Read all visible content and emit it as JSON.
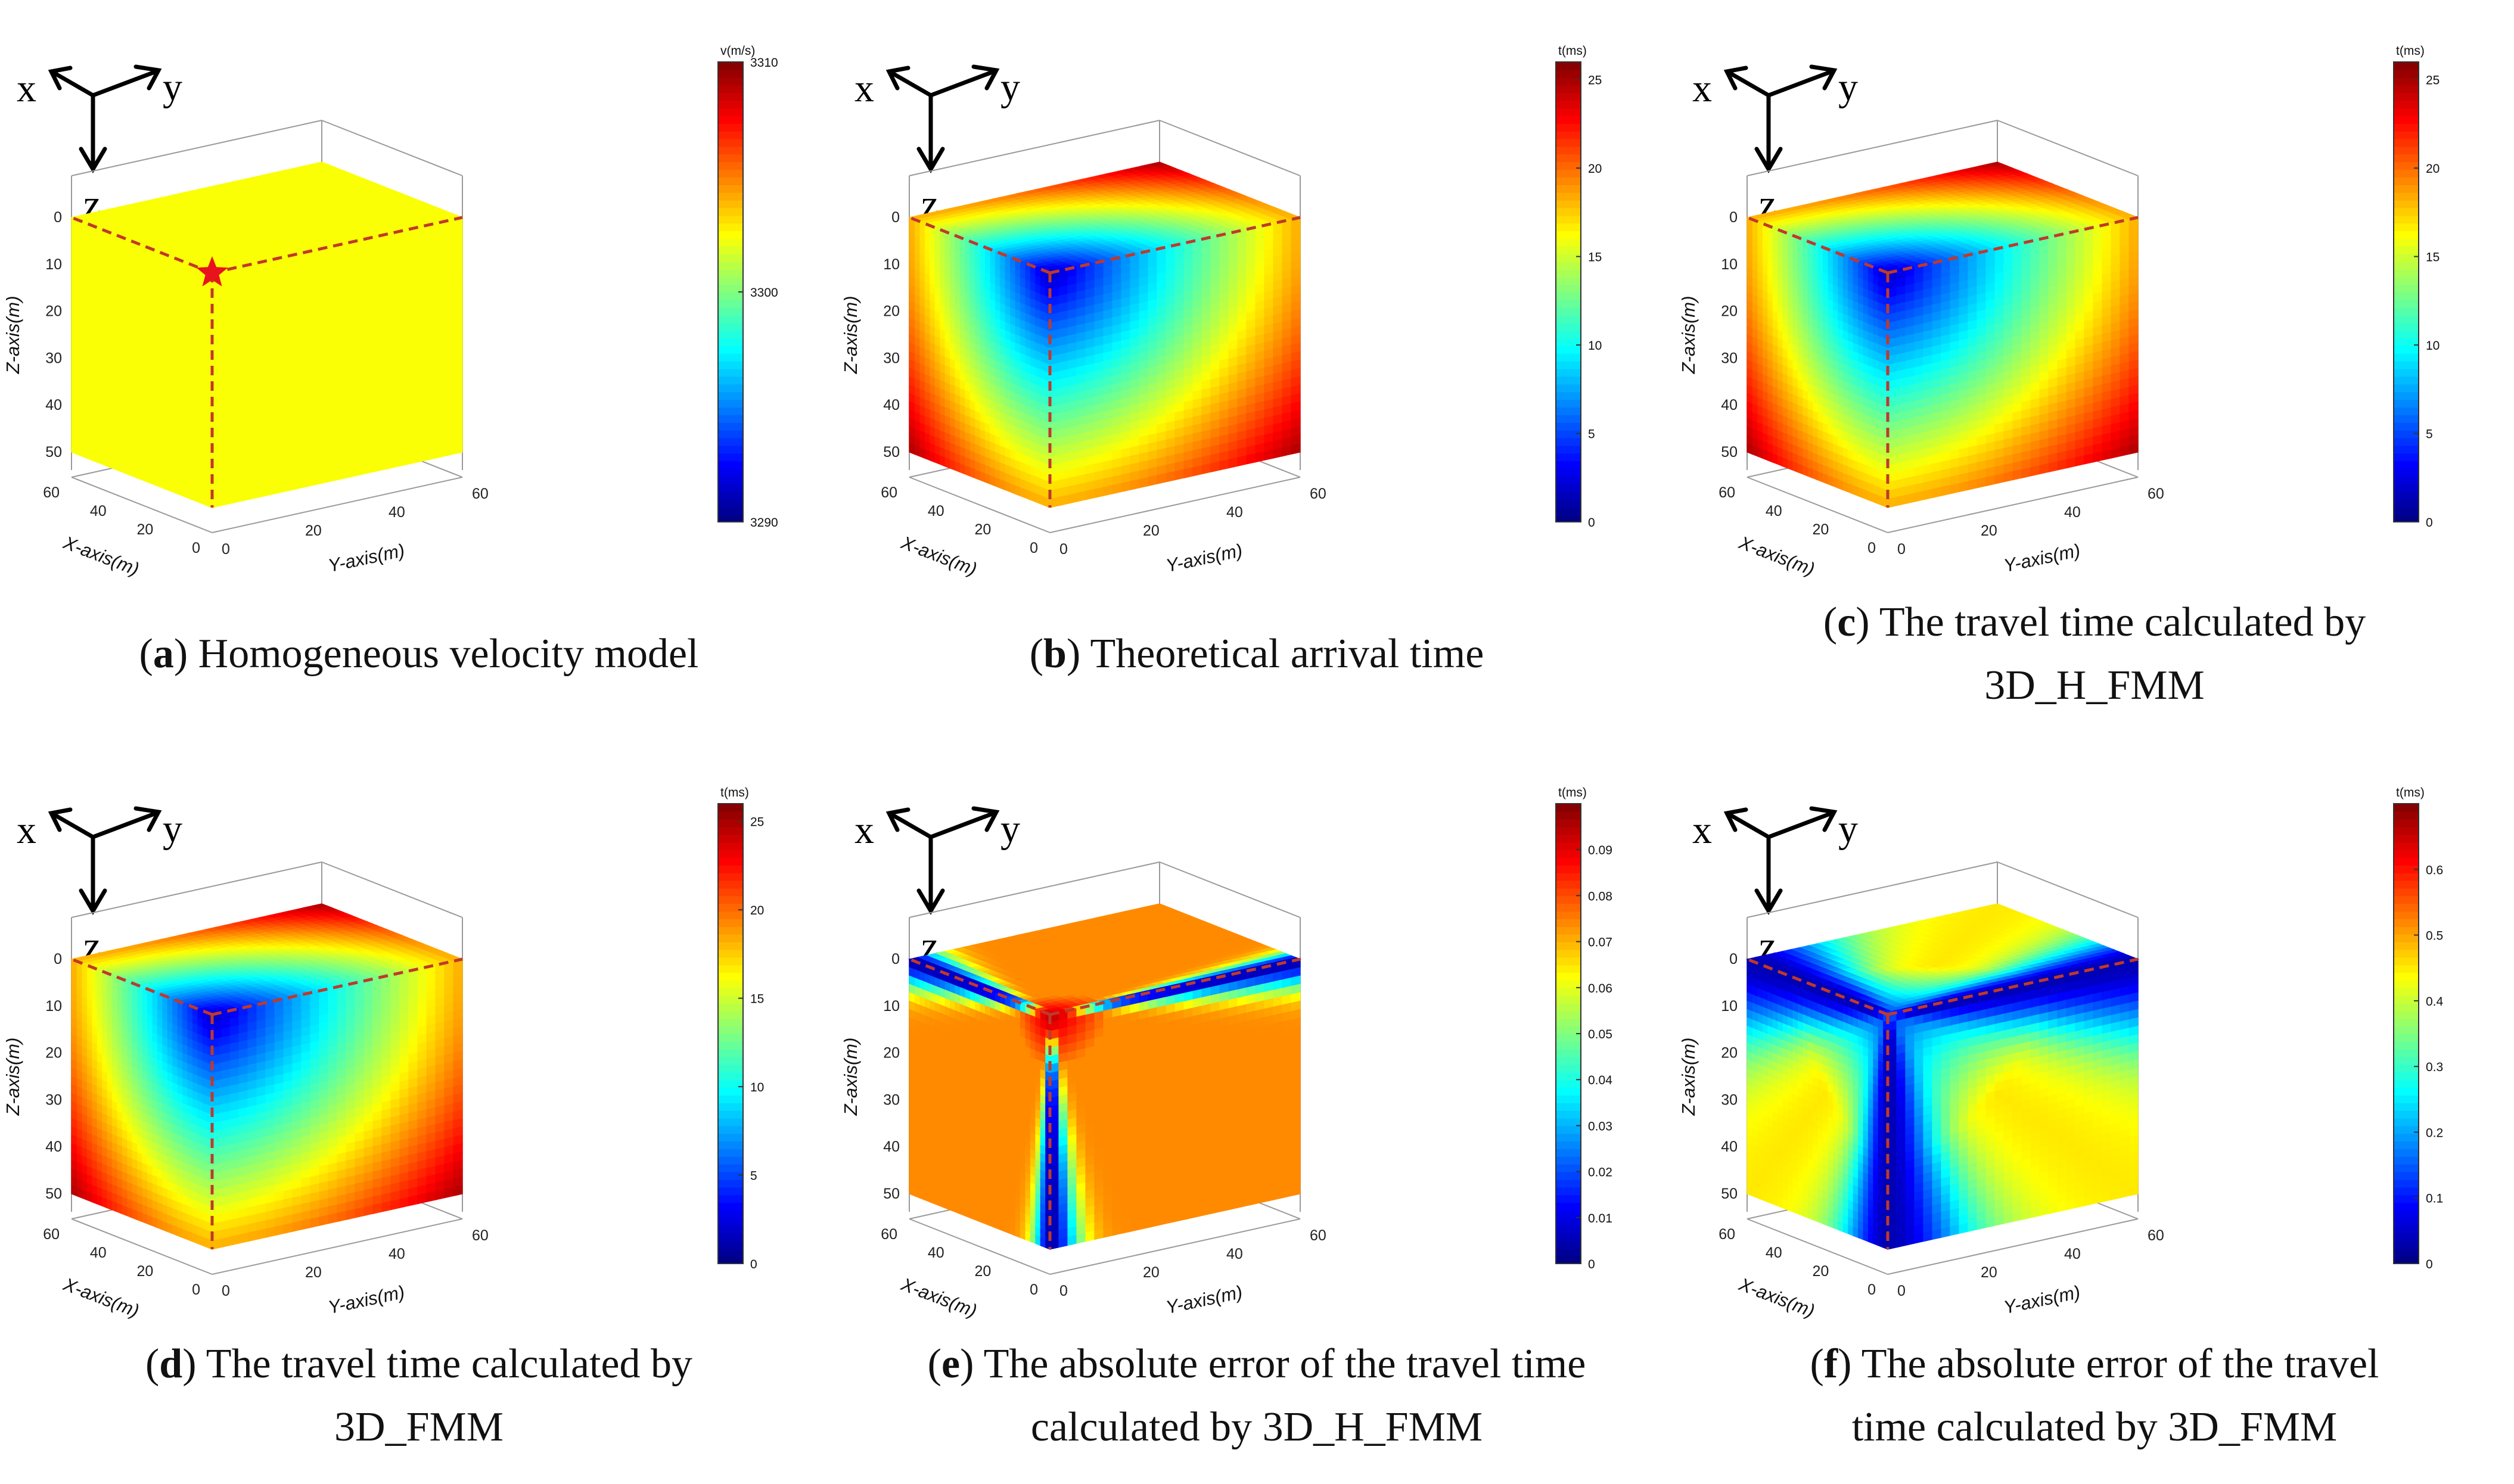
{
  "figure": {
    "orientation": {
      "x": "x",
      "y": "y",
      "z": "z"
    }
  },
  "chart_data": [
    {
      "type": "heatmap",
      "id": "a",
      "caption_letter": "a",
      "caption_lines": [
        "Homogeneous velocity model"
      ],
      "field": "uniform",
      "source_marker": true,
      "xlabel": "X-axis(m)",
      "ylabel": "Y-axis(m)",
      "zlabel": "Z-axis(m)",
      "x_ticks": [
        0,
        20,
        40,
        60
      ],
      "y_ticks": [
        0,
        20,
        40,
        60
      ],
      "z_ticks": [
        0,
        10,
        20,
        30,
        40,
        50
      ],
      "colorbar": {
        "title": "v(m/s)",
        "range": [
          3290,
          3310
        ],
        "ticks": [
          "3290",
          "3300",
          "3310"
        ]
      }
    },
    {
      "type": "heatmap",
      "id": "b",
      "caption_letter": "b",
      "caption_lines": [
        "Theoretical arrival time"
      ],
      "field": "travel-time",
      "xlabel": "X-axis(m)",
      "ylabel": "Y-axis(m)",
      "zlabel": "Z-axis(m)",
      "x_ticks": [
        0,
        20,
        40,
        60
      ],
      "y_ticks": [
        0,
        20,
        40,
        60
      ],
      "z_ticks": [
        0,
        10,
        20,
        30,
        40,
        50
      ],
      "colorbar": {
        "title": "t(ms)",
        "range": [
          0,
          26
        ],
        "ticks": [
          "0",
          "5",
          "10",
          "15",
          "20",
          "25"
        ]
      }
    },
    {
      "type": "heatmap",
      "id": "c",
      "caption_letter": "c",
      "caption_lines": [
        "The travel time calculated by",
        "3D_H_FMM"
      ],
      "field": "travel-time",
      "xlabel": "X-axis(m)",
      "ylabel": "Y-axis(m)",
      "zlabel": "Z-axis(m)",
      "x_ticks": [
        0,
        20,
        40,
        60
      ],
      "y_ticks": [
        0,
        20,
        40,
        60
      ],
      "z_ticks": [
        0,
        10,
        20,
        30,
        40,
        50
      ],
      "colorbar": {
        "title": "t(ms)",
        "range": [
          0,
          26
        ],
        "ticks": [
          "0",
          "5",
          "10",
          "15",
          "20",
          "25"
        ]
      }
    },
    {
      "type": "heatmap",
      "id": "d",
      "caption_letter": "d",
      "caption_lines": [
        "The travel time calculated by",
        "3D_FMM"
      ],
      "field": "travel-time",
      "xlabel": "X-axis(m)",
      "ylabel": "Y-axis(m)",
      "zlabel": "Z-axis(m)",
      "x_ticks": [
        0,
        20,
        40,
        60
      ],
      "y_ticks": [
        0,
        20,
        40,
        60
      ],
      "z_ticks": [
        0,
        10,
        20,
        30,
        40,
        50
      ],
      "colorbar": {
        "title": "t(ms)",
        "range": [
          0,
          26
        ],
        "ticks": [
          "0",
          "5",
          "10",
          "15",
          "20",
          "25"
        ]
      }
    },
    {
      "type": "heatmap",
      "id": "e",
      "caption_letter": "e",
      "caption_lines": [
        "The absolute error of the travel time",
        "calculated by 3D_H_FMM"
      ],
      "field": "error-hfmm",
      "xlabel": "X-axis(m)",
      "ylabel": "Y-axis(m)",
      "zlabel": "Z-axis(m)",
      "x_ticks": [
        0,
        20,
        40,
        60
      ],
      "y_ticks": [
        0,
        20,
        40,
        60
      ],
      "z_ticks": [
        0,
        10,
        20,
        30,
        40,
        50
      ],
      "colorbar": {
        "title": "t(ms)",
        "range": [
          0,
          0.1
        ],
        "ticks": [
          "0",
          "0.01",
          "0.02",
          "0.03",
          "0.04",
          "0.05",
          "0.06",
          "0.07",
          "0.08",
          "0.09"
        ]
      }
    },
    {
      "type": "heatmap",
      "id": "f",
      "caption_letter": "f",
      "caption_lines": [
        "The absolute error of the travel",
        "time calculated by 3D_FMM"
      ],
      "field": "error-fmm",
      "xlabel": "X-axis(m)",
      "ylabel": "Y-axis(m)",
      "zlabel": "Z-axis(m)",
      "x_ticks": [
        0,
        20,
        40,
        60
      ],
      "y_ticks": [
        0,
        20,
        40,
        60
      ],
      "z_ticks": [
        0,
        10,
        20,
        30,
        40,
        50
      ],
      "colorbar": {
        "title": "t(ms)",
        "range": [
          0,
          0.7
        ],
        "ticks": [
          "0",
          "0.1",
          "0.2",
          "0.3",
          "0.4",
          "0.5",
          "0.6"
        ]
      }
    }
  ]
}
